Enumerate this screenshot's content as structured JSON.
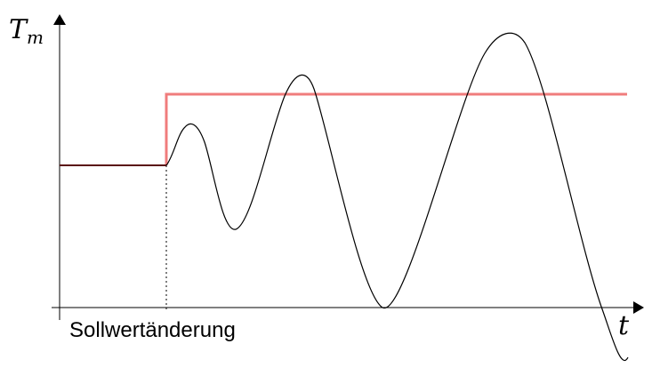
{
  "y_axis_label": {
    "main": "T",
    "sub": "m"
  },
  "x_axis_label": "t",
  "event_label": "Sollwertänderung",
  "colors": {
    "setpoint": "#f07c7c",
    "initial_level": "#5a1010",
    "response": "#000000"
  }
}
